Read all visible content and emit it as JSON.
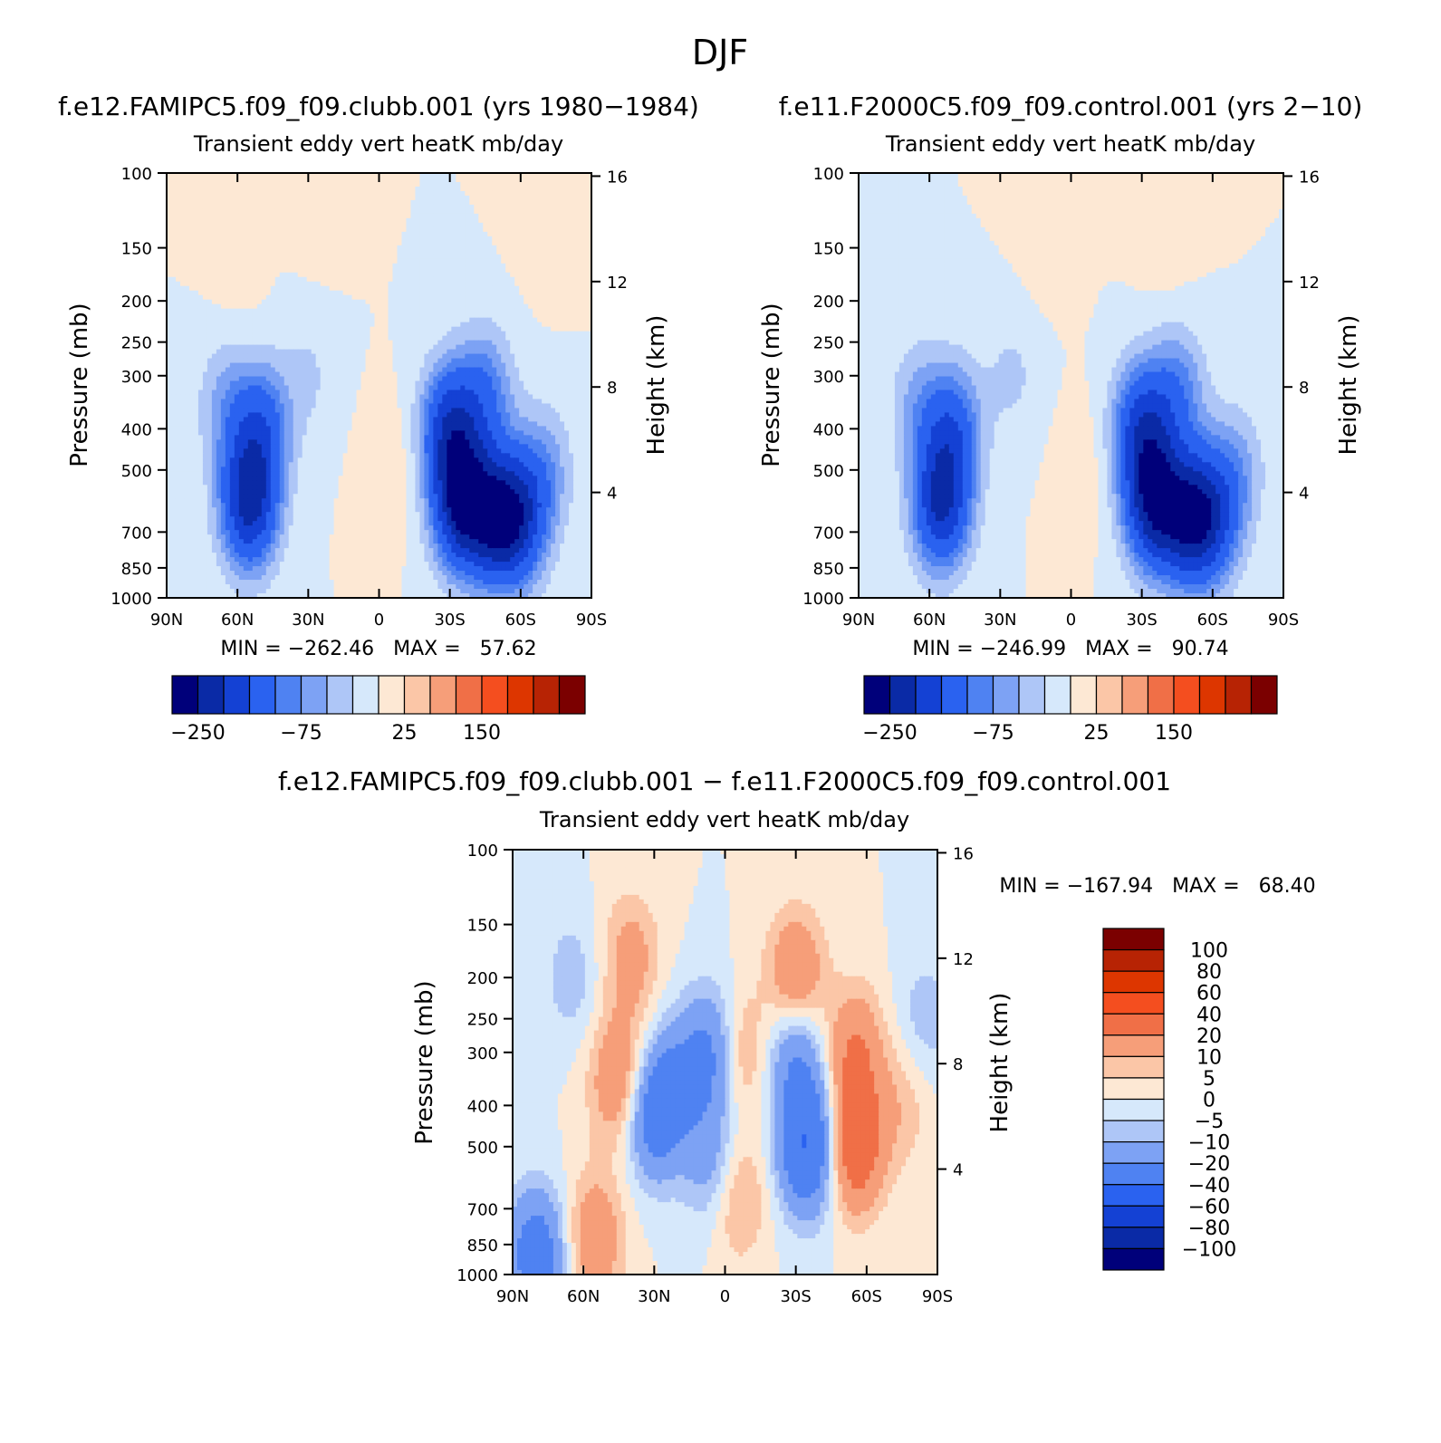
{
  "title": "DJF",
  "chart_data": [
    {
      "type": "heatmap",
      "panel": "top-left",
      "case_title": "f.e12.FAMIPC5.f09_f09.clubb.001 (yrs 1980−1984)",
      "subtitle": "Transient eddy vert heatK mb/day",
      "ylabel": "Pressure (mb)",
      "y2label": "Height (km)",
      "yticks": [
        "100",
        "150",
        "200",
        "250",
        "300",
        "400",
        "500",
        "700",
        "850",
        "1000"
      ],
      "y2ticks": [
        "16",
        "12",
        "8",
        "4"
      ],
      "xticks": [
        "90N",
        "60N",
        "30N",
        "0",
        "30S",
        "60S",
        "90S"
      ],
      "min_max": "MIN = −262.46   MAX =   57.62",
      "colorbar_labels": [
        "−250",
        "−75",
        "25",
        "150"
      ],
      "colorbar_colors": [
        "#00007a",
        "#0a2aa6",
        "#1441d4",
        "#2a62f0",
        "#4f82f2",
        "#7da2f4",
        "#aec6f7",
        "#d6e8fb",
        "#fde8d4",
        "#fbc6a7",
        "#f69e79",
        "#f06f47",
        "#f44e1f",
        "#dd3600",
        "#b72304",
        "#7b0000"
      ],
      "blobs": [
        {
          "lat": -35,
          "p": 600,
          "val": -240
        },
        {
          "lat": -50,
          "p": 650,
          "val": -200
        },
        {
          "lat": -30,
          "p": 400,
          "val": -170
        },
        {
          "lat": -60,
          "p": 650,
          "val": -140
        },
        {
          "lat": -45,
          "p": 330,
          "val": -90
        },
        {
          "lat": -70,
          "p": 500,
          "val": -60
        },
        {
          "lat": 55,
          "p": 600,
          "val": -210
        },
        {
          "lat": 50,
          "p": 400,
          "val": -120
        },
        {
          "lat": 65,
          "p": 350,
          "val": -55
        },
        {
          "lat": 30,
          "p": 300,
          "val": -28
        },
        {
          "lat": -5,
          "p": 500,
          "val": 18
        },
        {
          "lat": -70,
          "p": 130,
          "val": 12
        },
        {
          "lat": 25,
          "p": 130,
          "val": 8
        },
        {
          "lat": 60,
          "p": 200,
          "val": 8
        }
      ]
    },
    {
      "type": "heatmap",
      "panel": "top-right",
      "case_title": "f.e11.F2000C5.f09_f09.control.001 (yrs 2−10)",
      "subtitle": "Transient eddy vert heatK mb/day",
      "ylabel": "Pressure (mb)",
      "y2label": "Height (km)",
      "yticks": [
        "100",
        "150",
        "200",
        "250",
        "300",
        "400",
        "500",
        "700",
        "850",
        "1000"
      ],
      "y2ticks": [
        "16",
        "12",
        "8",
        "4"
      ],
      "xticks": [
        "90N",
        "60N",
        "30N",
        "0",
        "30S",
        "60S",
        "90S"
      ],
      "min_max": "MIN = −246.99   MAX =   90.74",
      "colorbar_labels": [
        "−250",
        "−75",
        "25",
        "150"
      ],
      "colorbar_colors": [
        "#00007a",
        "#0a2aa6",
        "#1441d4",
        "#2a62f0",
        "#4f82f2",
        "#7da2f4",
        "#aec6f7",
        "#d6e8fb",
        "#fde8d4",
        "#fbc6a7",
        "#f69e79",
        "#f06f47",
        "#f44e1f",
        "#dd3600",
        "#b72304",
        "#7b0000"
      ],
      "blobs": [
        {
          "lat": -35,
          "p": 600,
          "val": -225
        },
        {
          "lat": -50,
          "p": 650,
          "val": -190
        },
        {
          "lat": -30,
          "p": 400,
          "val": -160
        },
        {
          "lat": -60,
          "p": 650,
          "val": -130
        },
        {
          "lat": -45,
          "p": 330,
          "val": -85
        },
        {
          "lat": -70,
          "p": 500,
          "val": -55
        },
        {
          "lat": 55,
          "p": 600,
          "val": -200
        },
        {
          "lat": 50,
          "p": 400,
          "val": -115
        },
        {
          "lat": 65,
          "p": 350,
          "val": -50
        },
        {
          "lat": 25,
          "p": 300,
          "val": -30
        },
        {
          "lat": -5,
          "p": 500,
          "val": 15
        },
        {
          "lat": -40,
          "p": 150,
          "val": 10
        },
        {
          "lat": 10,
          "p": 150,
          "val": 10
        }
      ]
    },
    {
      "type": "heatmap",
      "panel": "bottom-difference",
      "case_title": "f.e12.FAMIPC5.f09_f09.clubb.001 − f.e11.F2000C5.f09_f09.control.001",
      "subtitle": "Transient eddy vert heatK mb/day",
      "ylabel": "Pressure (mb)",
      "y2label": "Height (km)",
      "yticks": [
        "100",
        "150",
        "200",
        "250",
        "300",
        "400",
        "500",
        "700",
        "850",
        "1000"
      ],
      "y2ticks": [
        "16",
        "12",
        "8",
        "4"
      ],
      "xticks": [
        "90N",
        "60N",
        "30N",
        "0",
        "30S",
        "60S",
        "90S"
      ],
      "min_max": "MIN = −167.94   MAX =   68.40",
      "colorbar_labels": [
        "100",
        "80",
        "60",
        "40",
        "20",
        "10",
        "5",
        "0",
        "−5",
        "−10",
        "−20",
        "−40",
        "−60",
        "−80",
        "−100"
      ],
      "colorbar_colors": [
        "#7b0000",
        "#b72304",
        "#dd3600",
        "#f44e1f",
        "#f06f47",
        "#f69e79",
        "#fbc6a7",
        "#fde8d4",
        "#d6e8fb",
        "#aec6f7",
        "#7da2f4",
        "#4f82f2",
        "#2a62f0",
        "#1441d4",
        "#0a2aa6",
        "#00007a"
      ],
      "blobs": [
        {
          "lat": -55,
          "p": 500,
          "val": 32
        },
        {
          "lat": -55,
          "p": 300,
          "val": 20
        },
        {
          "lat": -35,
          "p": 500,
          "val": -40
        },
        {
          "lat": -30,
          "p": 300,
          "val": -20
        },
        {
          "lat": -30,
          "p": 200,
          "val": 22
        },
        {
          "lat": -5,
          "p": 300,
          "val": 16
        },
        {
          "lat": -5,
          "p": 650,
          "val": 14
        },
        {
          "lat": 5,
          "p": 300,
          "val": -25
        },
        {
          "lat": 5,
          "p": 550,
          "val": -15
        },
        {
          "lat": 30,
          "p": 420,
          "val": -28
        },
        {
          "lat": 20,
          "p": 350,
          "val": -15
        },
        {
          "lat": 45,
          "p": 350,
          "val": 20
        },
        {
          "lat": 40,
          "p": 180,
          "val": 14
        },
        {
          "lat": 55,
          "p": 820,
          "val": 18
        },
        {
          "lat": 80,
          "p": 900,
          "val": -30
        },
        {
          "lat": -75,
          "p": 400,
          "val": 8
        },
        {
          "lat": -85,
          "p": 250,
          "val": -8
        },
        {
          "lat": 65,
          "p": 200,
          "val": -8
        }
      ]
    }
  ]
}
